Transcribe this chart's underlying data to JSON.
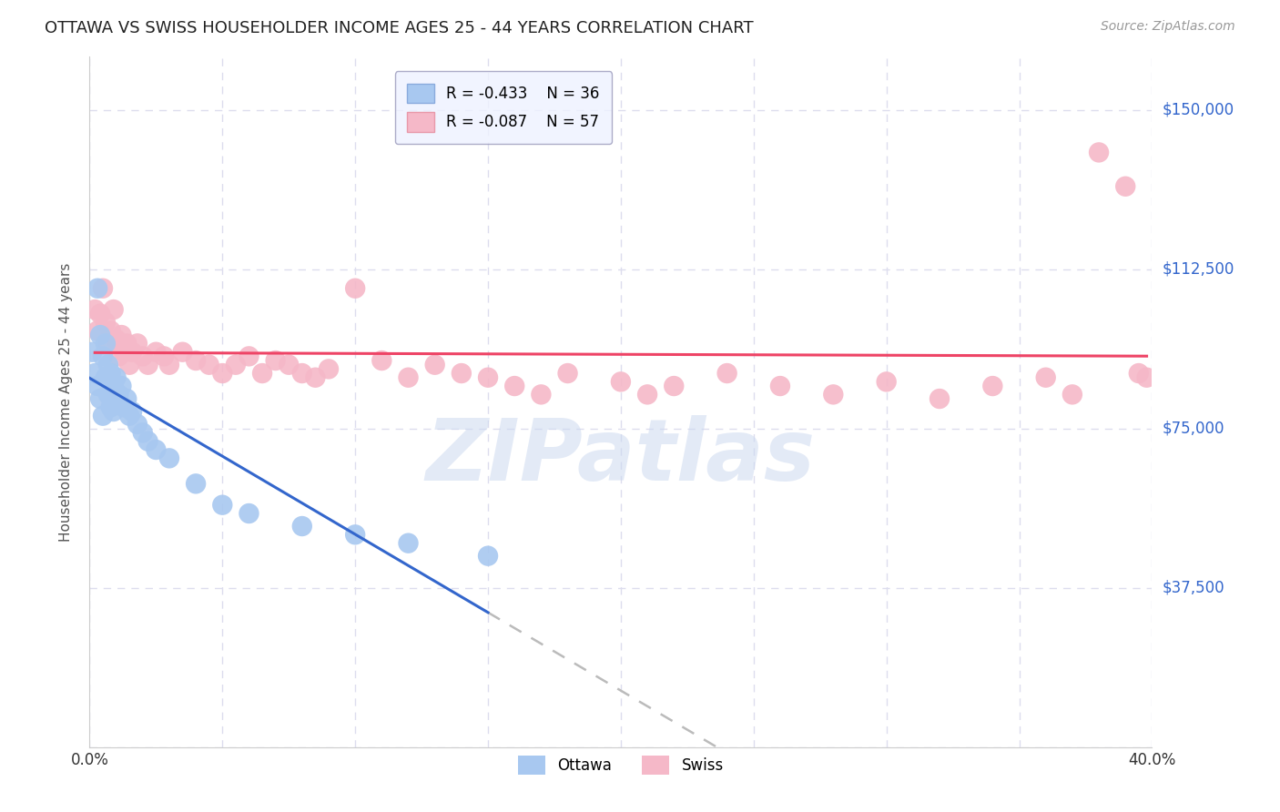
{
  "title": "OTTAWA VS SWISS HOUSEHOLDER INCOME AGES 25 - 44 YEARS CORRELATION CHART",
  "source": "Source: ZipAtlas.com",
  "ylabel": "Householder Income Ages 25 - 44 years",
  "xlim": [
    0.0,
    0.4
  ],
  "ylim": [
    0,
    162500
  ],
  "yticks": [
    0,
    37500,
    75000,
    112500,
    150000
  ],
  "xticks": [
    0.0,
    0.05,
    0.1,
    0.15,
    0.2,
    0.25,
    0.3,
    0.35,
    0.4
  ],
  "ytick_labels": [
    "",
    "$37,500",
    "$75,000",
    "$112,500",
    "$150,000"
  ],
  "ottawa_color": "#a8c8f0",
  "swiss_color": "#f5b8c8",
  "ottawa_line_color": "#3366cc",
  "swiss_line_color": "#ee4466",
  "dashed_line_color": "#bbbbbb",
  "legend_box_color": "#eef2ff",
  "legend_box_edge": "#9999bb",
  "R_ottawa": -0.433,
  "N_ottawa": 36,
  "R_swiss": -0.087,
  "N_swiss": 57,
  "background_color": "#ffffff",
  "grid_color": "#ddddee",
  "watermark": "ZIPatlas",
  "ottawa_x": [
    0.001,
    0.002,
    0.003,
    0.003,
    0.004,
    0.004,
    0.005,
    0.005,
    0.006,
    0.006,
    0.007,
    0.007,
    0.008,
    0.008,
    0.009,
    0.009,
    0.01,
    0.01,
    0.011,
    0.012,
    0.013,
    0.014,
    0.015,
    0.016,
    0.018,
    0.02,
    0.022,
    0.025,
    0.03,
    0.04,
    0.05,
    0.06,
    0.08,
    0.1,
    0.12,
    0.15
  ],
  "ottawa_y": [
    93000,
    88000,
    108000,
    85000,
    97000,
    82000,
    92000,
    78000,
    95000,
    87000,
    90000,
    83000,
    88000,
    80000,
    85000,
    79000,
    87000,
    82000,
    83000,
    85000,
    80000,
    82000,
    78000,
    79000,
    76000,
    74000,
    72000,
    70000,
    68000,
    62000,
    57000,
    55000,
    52000,
    50000,
    48000,
    45000
  ],
  "swiss_x": [
    0.002,
    0.003,
    0.004,
    0.005,
    0.006,
    0.007,
    0.008,
    0.009,
    0.01,
    0.011,
    0.012,
    0.013,
    0.014,
    0.015,
    0.016,
    0.018,
    0.02,
    0.022,
    0.025,
    0.028,
    0.03,
    0.035,
    0.04,
    0.045,
    0.05,
    0.055,
    0.06,
    0.065,
    0.07,
    0.075,
    0.08,
    0.085,
    0.09,
    0.1,
    0.11,
    0.12,
    0.13,
    0.14,
    0.15,
    0.16,
    0.17,
    0.18,
    0.2,
    0.21,
    0.22,
    0.24,
    0.26,
    0.28,
    0.3,
    0.32,
    0.34,
    0.36,
    0.37,
    0.38,
    0.39,
    0.395,
    0.398
  ],
  "swiss_y": [
    103000,
    98000,
    102000,
    108000,
    100000,
    95000,
    98000,
    103000,
    96000,
    92000,
    97000,
    93000,
    95000,
    90000,
    93000,
    95000,
    92000,
    90000,
    93000,
    92000,
    90000,
    93000,
    91000,
    90000,
    88000,
    90000,
    92000,
    88000,
    91000,
    90000,
    88000,
    87000,
    89000,
    108000,
    91000,
    87000,
    90000,
    88000,
    87000,
    85000,
    83000,
    88000,
    86000,
    83000,
    85000,
    88000,
    85000,
    83000,
    86000,
    82000,
    85000,
    87000,
    83000,
    140000,
    132000,
    88000,
    87000
  ]
}
